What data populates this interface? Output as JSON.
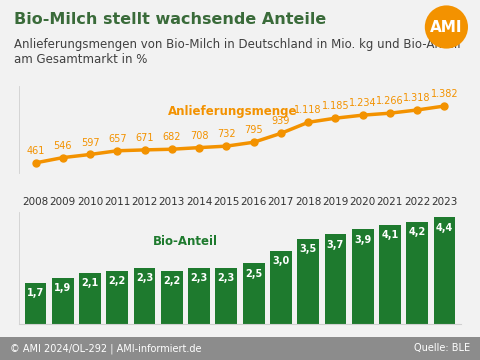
{
  "title": "Bio-Milch stellt wachsende Anteile",
  "subtitle": "Anlieferungsmengen von Bio-Milch in Deutschland in Mio. kg und Bio-Anteil am Gesamtmarkt in %",
  "logo": "AMI",
  "footer": "© AMI 2024/OL-292 | AMI-informiert.de",
  "source": "Quelle: BLE",
  "chart_data": [
    {
      "type": "line",
      "categories": [
        "2008",
        "2009",
        "2010",
        "2011",
        "2012",
        "2013",
        "2014",
        "2015",
        "2016",
        "2017",
        "2018",
        "2019",
        "2020",
        "2021",
        "2022",
        "2023"
      ],
      "series": [
        {
          "name": "Anlieferungsmenge",
          "color": "#f39200",
          "marker": "o",
          "line_style": "solid",
          "values": [
            461,
            546,
            597,
            657,
            671,
            682,
            708,
            732,
            795,
            939,
            1118,
            1185,
            1234,
            1266,
            1318,
            1382
          ],
          "value_labels": [
            "461",
            "546",
            "597",
            "657",
            "671",
            "682",
            "708",
            "732",
            "795",
            "939",
            "1.118",
            "1.185",
            "1.234",
            "1.266",
            "1.318",
            "1.382"
          ]
        }
      ],
      "ylim": [
        300,
        1700
      ],
      "data_labels": true,
      "tick_labels": false
    },
    {
      "type": "bar",
      "categories": [
        "2008",
        "2009",
        "2010",
        "2011",
        "2012",
        "2013",
        "2014",
        "2015",
        "2016",
        "2017",
        "2018",
        "2019",
        "2020",
        "2021",
        "2022",
        "2023"
      ],
      "series": [
        {
          "name": "Bio-Anteil",
          "color": "#1e7a2e",
          "values": [
            1.7,
            1.9,
            2.1,
            2.2,
            2.3,
            2.2,
            2.3,
            2.3,
            2.5,
            3.0,
            3.5,
            3.7,
            3.9,
            4.1,
            4.2,
            4.4
          ],
          "value_labels": [
            "1,7",
            "1,9",
            "2,1",
            "2,2",
            "2,3",
            "2,2",
            "2,3",
            "2,3",
            "2,5",
            "3,0",
            "3,5",
            "3,7",
            "3,9",
            "4,1",
            "4,2",
            "4,4"
          ]
        }
      ],
      "ylim": [
        0,
        4.6
      ],
      "data_labels": true,
      "tick_labels": "x"
    }
  ]
}
